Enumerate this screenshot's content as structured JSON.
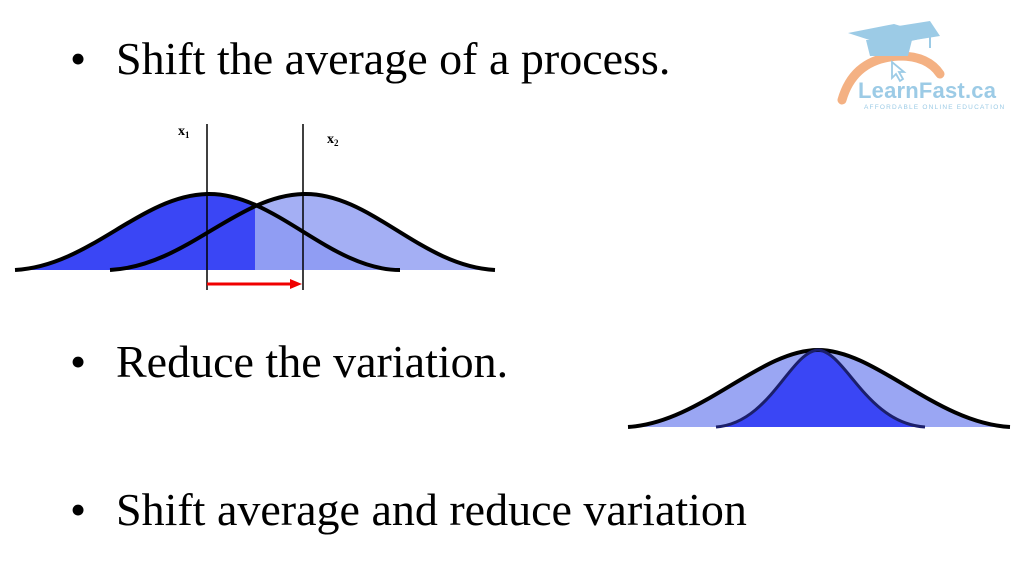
{
  "bullets": [
    "Shift the average of a process.",
    "Reduce the variation.",
    "Shift average and reduce variation"
  ],
  "bullet_symbol": "•",
  "diagram_shift": {
    "label_x1": "x",
    "label_x1_sub": "1",
    "label_x2": "x",
    "label_x2_sub": "2"
  },
  "logo": {
    "brand": "LearnFast.ca",
    "tagline": "AFFORDABLE ONLINE EDUCATION",
    "icon": "graduation-cap-icon"
  },
  "colors": {
    "dark_curve_fill": "#3a46f5",
    "light_curve_fill": "#9aa6f3",
    "arrow": "#f00000",
    "logo_blue": "#9ccbe6",
    "logo_orange": "#f4b183"
  }
}
